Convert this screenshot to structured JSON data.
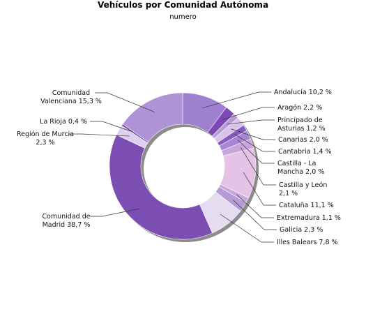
{
  "chart_data": {
    "type": "pie",
    "title": "Vehículos por Comunidad Autónoma",
    "subtitle": "numero",
    "series": [
      {
        "name": "Andalucía",
        "value": 10.2,
        "label": [
          "Andalucía 10,2 %"
        ],
        "color": "#9f7fcf"
      },
      {
        "name": "Aragón",
        "value": 2.2,
        "label": [
          "Aragón 2,2 %"
        ],
        "color": "#7d48b3"
      },
      {
        "name": "Principado de Asturias",
        "value": 1.2,
        "label": [
          "Principado de",
          "Asturias 1,2 %"
        ],
        "color": "#b89ad9"
      },
      {
        "name": "Canarias",
        "value": 2.0,
        "label": [
          "Canarias 2,0 %"
        ],
        "color": "#d8c4e8"
      },
      {
        "name": "Cantabria",
        "value": 1.4,
        "label": [
          "Cantabria 1,4 %"
        ],
        "color": "#8a5bbf"
      },
      {
        "name": "Castilla - La Mancha",
        "value": 2.0,
        "label": [
          "Castilla - La",
          "Mancha 2,0 %"
        ],
        "color": "#a986d4"
      },
      {
        "name": "Castilla y León",
        "value": 2.1,
        "label": [
          "Castilla y León",
          "2,1 %"
        ],
        "color": "#c8a6dc"
      },
      {
        "name": "Cataluña",
        "value": 11.1,
        "label": [
          "Cataluña 11,1 %"
        ],
        "color": "#e5c3e6"
      },
      {
        "name": "Extremadura",
        "value": 1.1,
        "label": [
          "Extremadura 1,1 %"
        ],
        "color": "#c4a8dd"
      },
      {
        "name": "Galicia",
        "value": 2.3,
        "label": [
          "Galicia 2,3 %"
        ],
        "color": "#b69ad6"
      },
      {
        "name": "Illes Balears",
        "value": 7.8,
        "label": [
          "Illes Balears 7,8 %"
        ],
        "color": "#e6dcf1"
      },
      {
        "name": "Comunidad de Madrid",
        "value": 38.7,
        "label": [
          "Comunidad de",
          "Madrid 38,7 %"
        ],
        "color": "#7c4db3"
      },
      {
        "name": "Región de Murcia",
        "value": 2.3,
        "label": [
          "Región de Murcia",
          "2,3 %"
        ],
        "color": "#ddd0ec"
      },
      {
        "name": "La Rioja",
        "value": 0.4,
        "label": [
          "La Rioja 0,4 %"
        ],
        "color": "#6a3aa0"
      },
      {
        "name": "Comunidad Valenciana",
        "value": 15.3,
        "label": [
          "Comunidad",
          "Valenciana 15,3 %"
        ],
        "color": "#b093d6"
      }
    ]
  }
}
